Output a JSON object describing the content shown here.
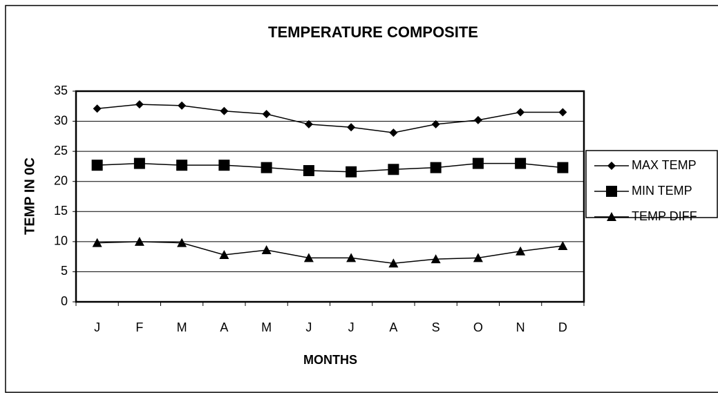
{
  "chart_data": {
    "type": "line",
    "title": "TEMPERATURE COMPOSITE",
    "x_label": "MONTHS",
    "y_label": "TEMP IN 0C",
    "categories": [
      "J",
      "F",
      "M",
      "A",
      "M",
      "J",
      "J",
      "A",
      "S",
      "O",
      "N",
      "D"
    ],
    "series": [
      {
        "name": "MAX TEMP",
        "color": "#000000",
        "marker": "diamond",
        "values": [
          32.1,
          32.8,
          32.6,
          31.7,
          31.2,
          29.5,
          29.0,
          28.1,
          29.5,
          30.2,
          31.5,
          31.5
        ]
      },
      {
        "name": "MIN TEMP",
        "color": "#000000",
        "marker": "square",
        "values": [
          22.7,
          23.0,
          22.7,
          22.7,
          22.3,
          21.8,
          21.6,
          22.0,
          22.3,
          23.0,
          23.0,
          22.3
        ]
      },
      {
        "name": "TEMP DIFF",
        "color": "#000000",
        "marker": "triangle",
        "values": [
          9.8,
          10.0,
          9.8,
          7.8,
          8.6,
          7.3,
          7.3,
          6.4,
          7.1,
          7.3,
          8.4,
          9.3
        ]
      }
    ],
    "ylim": [
      0,
      35
    ],
    "yticks": [
      0,
      5,
      10,
      15,
      20,
      25,
      30,
      35
    ],
    "grid": true,
    "legend": "right"
  }
}
